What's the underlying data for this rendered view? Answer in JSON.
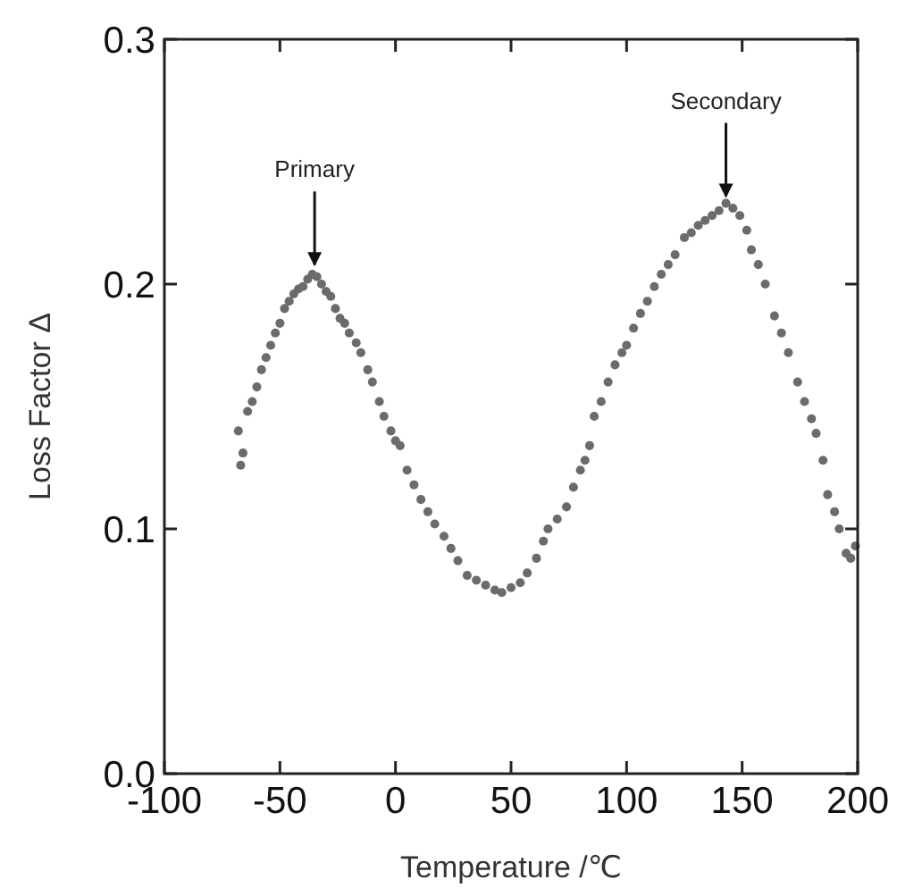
{
  "chart_data": {
    "type": "scatter",
    "xlabel": "Temperature /℃",
    "ylabel": "Loss Factor Δ",
    "xlim": [
      -100,
      200
    ],
    "xticks": [
      -100,
      -50,
      0,
      50,
      100,
      150,
      200
    ],
    "ylim": [
      0,
      0.3
    ],
    "yticks": [
      {
        "value": 0,
        "label": "0.0"
      },
      {
        "value": 0.1,
        "label": "0.1"
      },
      {
        "value": 0.2,
        "label": "0.2"
      },
      {
        "value": 0.3,
        "label": "0.3"
      }
    ],
    "marker": "circle",
    "grid": false,
    "annotations": [
      {
        "text": "Primary",
        "x": -35,
        "y": 0.205
      },
      {
        "text": "Secondary",
        "x": 143,
        "y": 0.233
      }
    ],
    "series": [
      {
        "color": "#6b6b6b",
        "x": [
          -68,
          -67,
          -66,
          -64,
          -62,
          -60,
          -58,
          -56,
          -54,
          -52,
          -50,
          -48,
          -46,
          -44,
          -42,
          -40,
          -38,
          -36,
          -34,
          -32,
          -30,
          -28,
          -26,
          -24,
          -22,
          -20,
          -17,
          -15,
          -12,
          -10,
          -7,
          -5,
          -2,
          0,
          2,
          5,
          8,
          11,
          14,
          17,
          21,
          24,
          27,
          31,
          35,
          39,
          43,
          46,
          50,
          54,
          57,
          61,
          64,
          66,
          70,
          74,
          77,
          80,
          82,
          84,
          86,
          89,
          92,
          95,
          98,
          100,
          103,
          106,
          109,
          112,
          115,
          118,
          121,
          125,
          128,
          131,
          134,
          137,
          140,
          143,
          146,
          149,
          152,
          154,
          157,
          160,
          164,
          167,
          170,
          174,
          177,
          180,
          182,
          185,
          187,
          190,
          192,
          195,
          197,
          199
        ],
        "values": [
          0.14,
          0.126,
          0.131,
          0.148,
          0.152,
          0.158,
          0.165,
          0.17,
          0.175,
          0.18,
          0.184,
          0.19,
          0.193,
          0.196,
          0.198,
          0.199,
          0.202,
          0.204,
          0.203,
          0.2,
          0.197,
          0.195,
          0.19,
          0.186,
          0.184,
          0.18,
          0.176,
          0.172,
          0.165,
          0.16,
          0.152,
          0.146,
          0.14,
          0.136,
          0.134,
          0.124,
          0.118,
          0.112,
          0.107,
          0.102,
          0.097,
          0.092,
          0.087,
          0.081,
          0.079,
          0.077,
          0.075,
          0.074,
          0.076,
          0.078,
          0.082,
          0.088,
          0.095,
          0.1,
          0.104,
          0.109,
          0.117,
          0.124,
          0.128,
          0.134,
          0.146,
          0.152,
          0.16,
          0.167,
          0.172,
          0.175,
          0.182,
          0.188,
          0.193,
          0.199,
          0.204,
          0.208,
          0.212,
          0.219,
          0.221,
          0.224,
          0.226,
          0.228,
          0.23,
          0.233,
          0.231,
          0.228,
          0.222,
          0.214,
          0.208,
          0.2,
          0.187,
          0.18,
          0.172,
          0.16,
          0.152,
          0.145,
          0.139,
          0.128,
          0.114,
          0.107,
          0.1,
          0.09,
          0.088,
          0.093
        ]
      }
    ]
  }
}
